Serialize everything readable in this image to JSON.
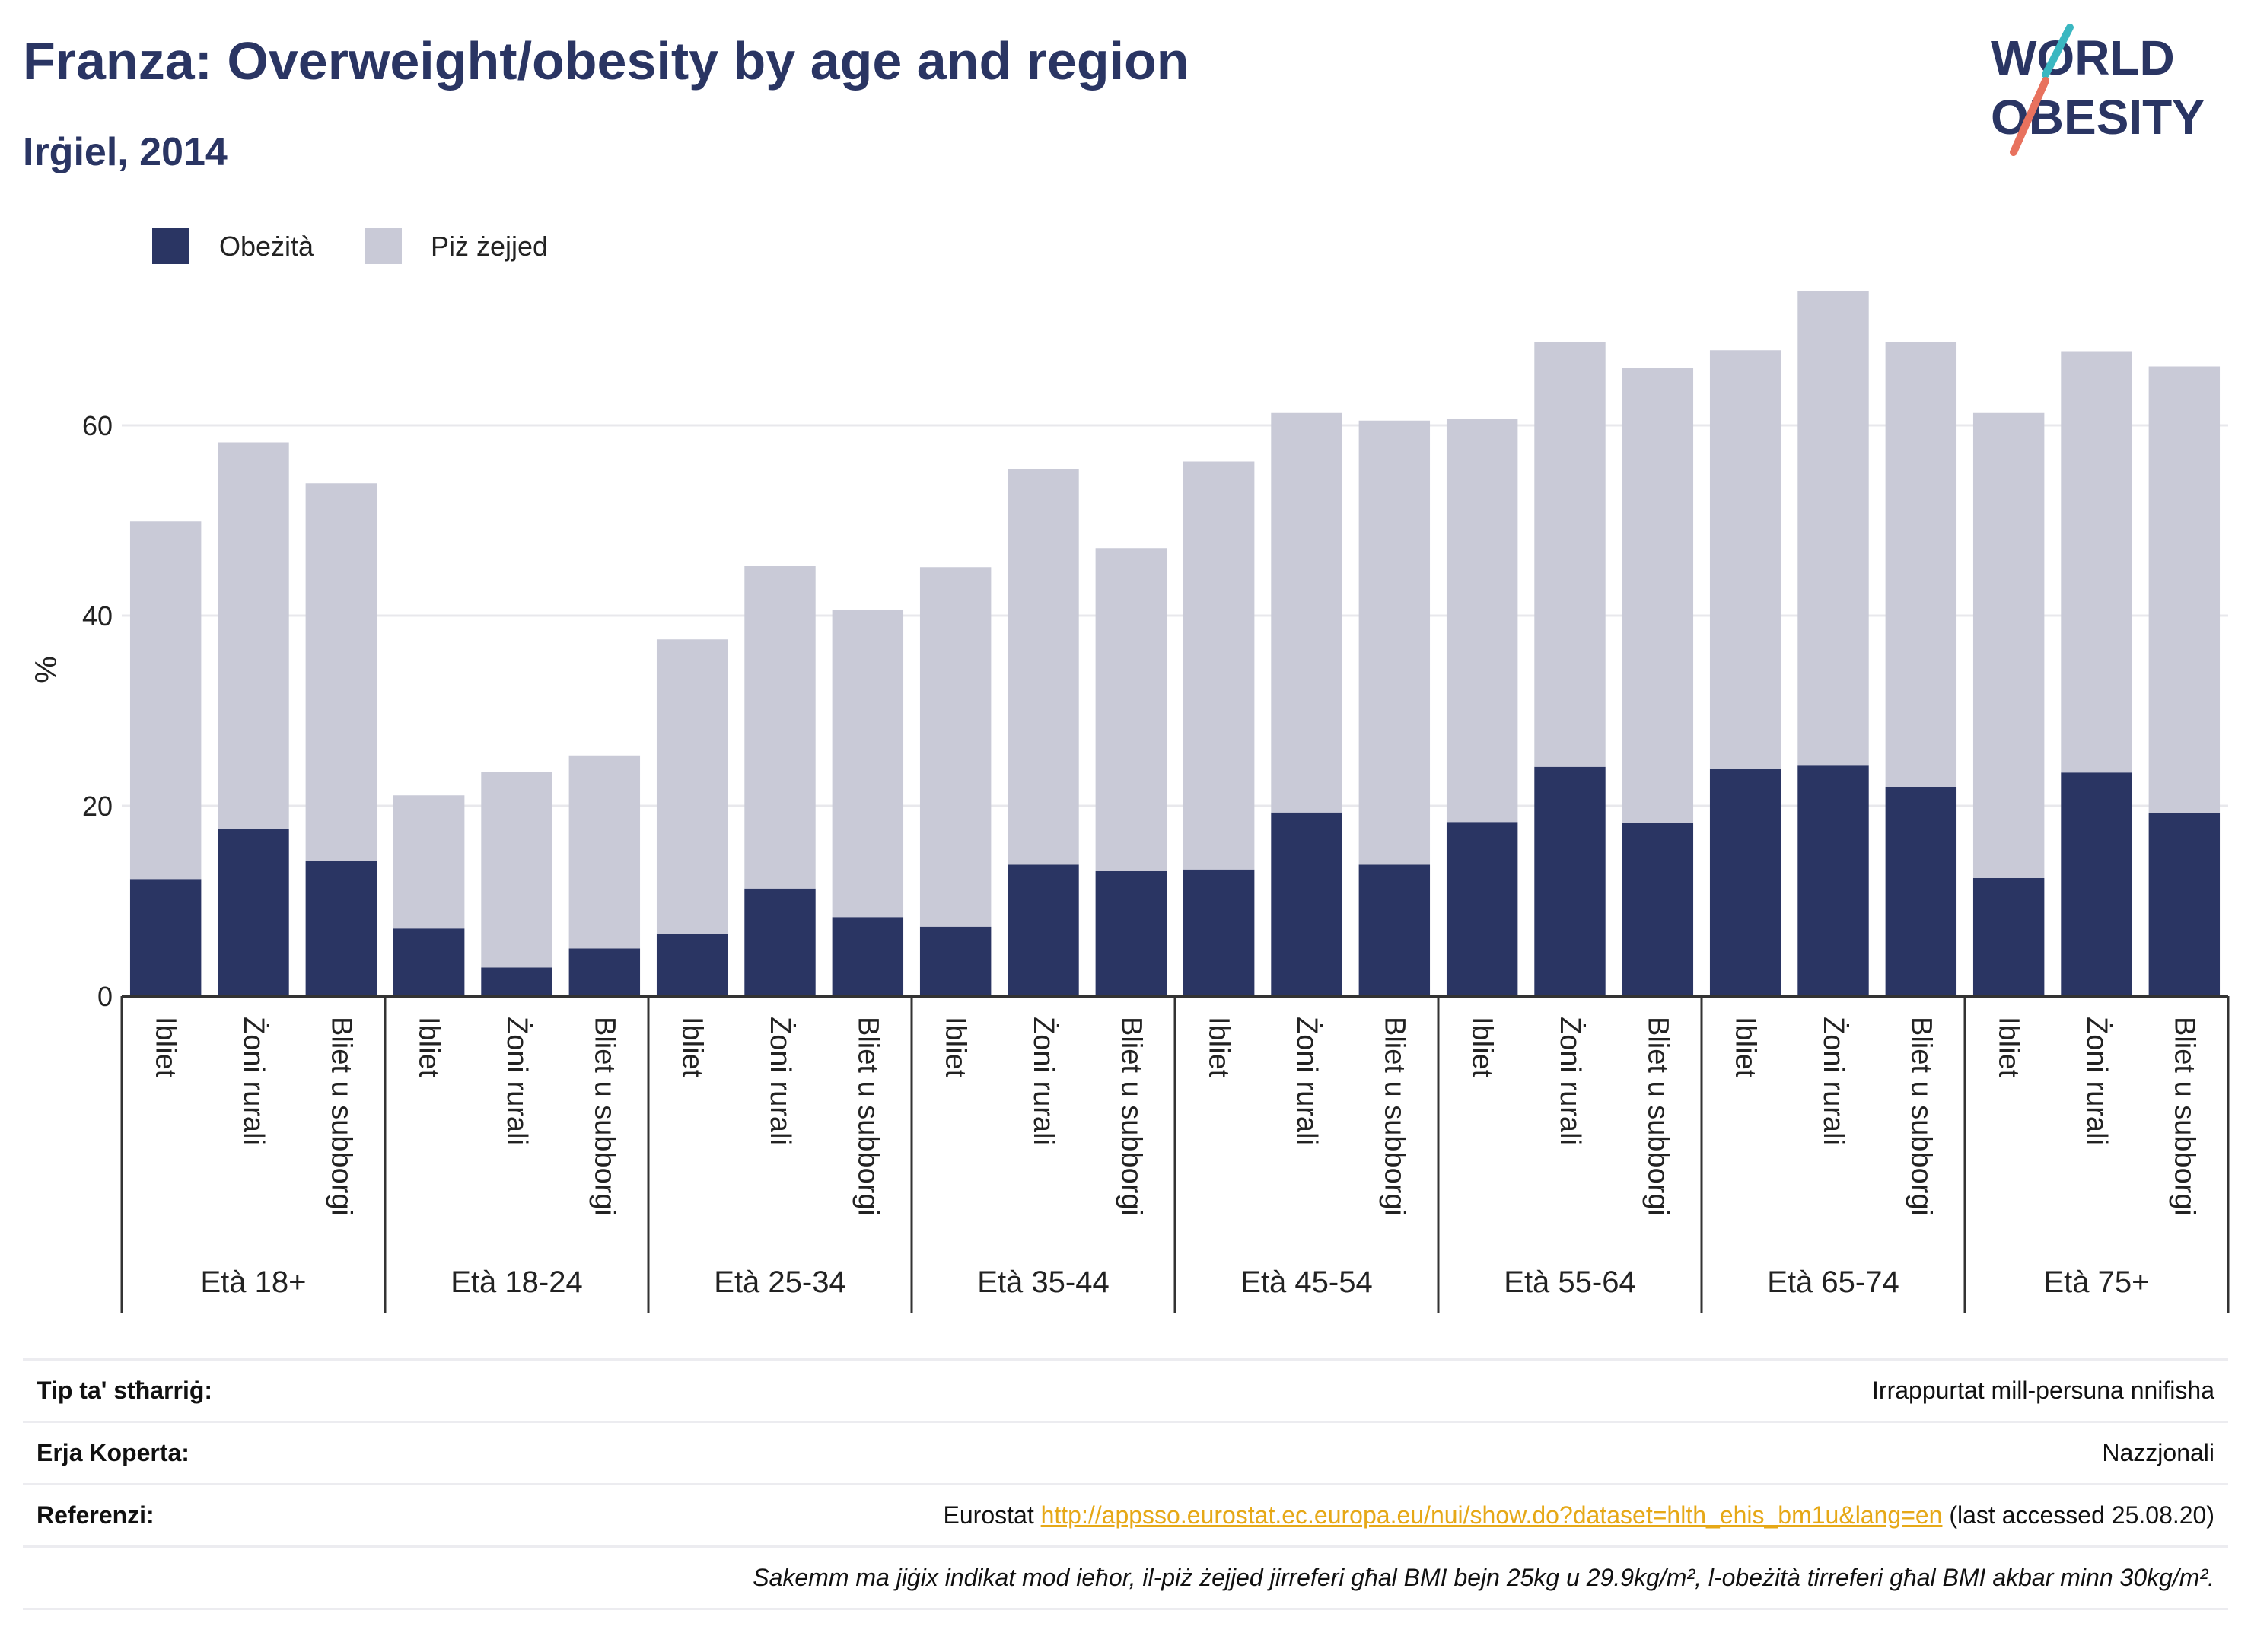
{
  "header": {
    "title": "Franza: Overweight/obesity by age and region",
    "subtitle": "Irġiel, 2014"
  },
  "logo": {
    "line1": "WORLD",
    "line2": "OBESITY"
  },
  "colors": {
    "obesity": "#2a3563",
    "overweight": "#c9cad7",
    "grid": "#e8e8ec",
    "axis": "#333333",
    "link": "#e6a817"
  },
  "chart_data": {
    "type": "bar",
    "stacked": true,
    "ylabel": "%",
    "ylim": [
      0,
      80
    ],
    "yticks": [
      0,
      20,
      40,
      60
    ],
    "grid": true,
    "legend_position": "top-left",
    "groups": [
      "Età 18+",
      "Età 18-24",
      "Età 25-34",
      "Età 35-44",
      "Età 45-54",
      "Età 55-64",
      "Età 65-74",
      "Età 75+"
    ],
    "subcategories": [
      "Ibliet",
      "Żoni rurali",
      "Bliet u subborgi"
    ],
    "series": [
      {
        "name": "Obeżità",
        "values": [
          12.3,
          17.6,
          14.2,
          7.1,
          3.0,
          5.0,
          6.5,
          11.3,
          8.3,
          7.3,
          13.8,
          13.2,
          13.3,
          19.3,
          13.8,
          18.3,
          24.1,
          18.2,
          23.9,
          24.3,
          22.0,
          12.4,
          23.5,
          19.2
        ]
      },
      {
        "name": "Piż żejjed",
        "values": [
          37.6,
          40.6,
          39.7,
          14.0,
          20.6,
          20.3,
          31.0,
          33.9,
          32.3,
          37.8,
          41.6,
          33.9,
          42.9,
          42.0,
          46.7,
          42.4,
          44.7,
          47.8,
          44.0,
          49.8,
          46.8,
          48.9,
          44.3,
          47.0
        ]
      }
    ]
  },
  "info": {
    "rows": [
      {
        "label": "Tip ta' stħarriġ:",
        "value": "Irrappurtat mill-persuna nnifisha"
      },
      {
        "label": "Erja Koperta:",
        "value": "Nazzjonali"
      },
      {
        "label": "Referenzi:",
        "value_prefix": "Eurostat ",
        "link": "http://appsso.eurostat.ec.europa.eu/nui/show.do?dataset=hlth_ehis_bm1u&lang=en",
        "value_suffix": " (last accessed 25.08.20)"
      }
    ],
    "note": "Sakemm ma jiġix indikat mod ieħor, il-piż żejjed jirreferi għal BMI bejn 25kg u 29.9kg/m², l-obeżità tirreferi għal BMI akbar minn 30kg/m²."
  }
}
